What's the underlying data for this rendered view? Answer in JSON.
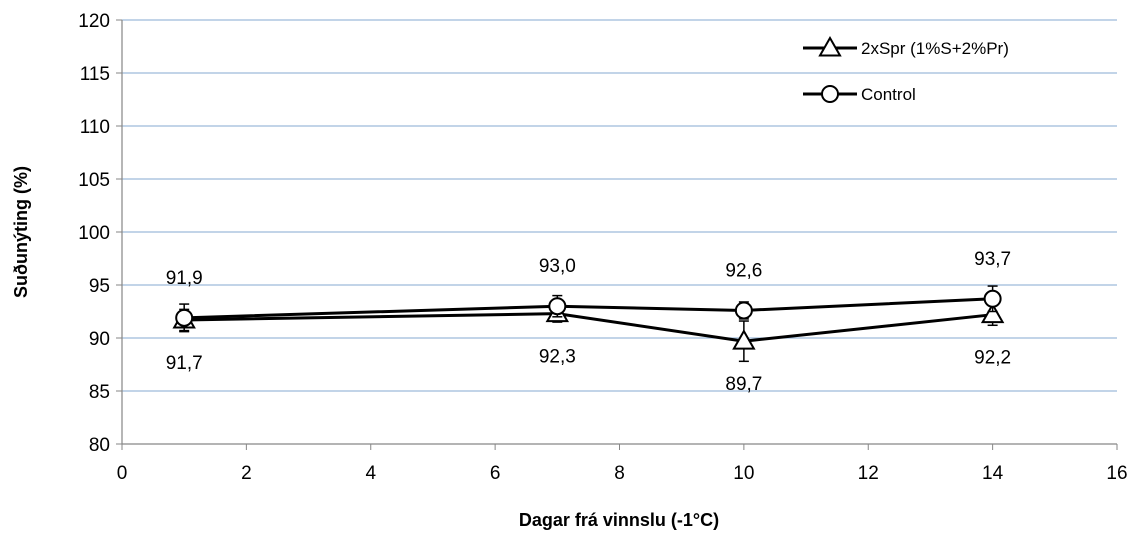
{
  "chart_data": {
    "type": "line",
    "xlabel": "Dagar frá vinnslu (-1°C)",
    "ylabel": "Suðunýting (%)",
    "xlim": [
      0,
      16
    ],
    "ylim": [
      80,
      120
    ],
    "xticks": [
      0,
      2,
      4,
      6,
      8,
      10,
      12,
      14,
      16
    ],
    "yticks": [
      80,
      85,
      90,
      95,
      100,
      105,
      110,
      115,
      120
    ],
    "grid": "horizontal",
    "legend_position": "top-right",
    "series": [
      {
        "name": "2xSpr (1%S+2%Pr)",
        "marker": "triangle",
        "x": [
          1,
          7,
          10,
          14
        ],
        "y": [
          91.7,
          92.3,
          89.7,
          92.2
        ],
        "labels": [
          "91,7",
          "92,3",
          "89,7",
          "92,2"
        ],
        "error": [
          1.0,
          0.8,
          1.9,
          1.0
        ],
        "color": "#000000"
      },
      {
        "name": "Control",
        "marker": "circle",
        "x": [
          1,
          7,
          10,
          14
        ],
        "y": [
          91.9,
          93.0,
          92.6,
          93.7
        ],
        "labels": [
          "91,9",
          "93,0",
          "92,6",
          "93,7"
        ],
        "error": [
          1.3,
          1.0,
          0.8,
          1.2
        ],
        "color": "#000000"
      }
    ]
  }
}
